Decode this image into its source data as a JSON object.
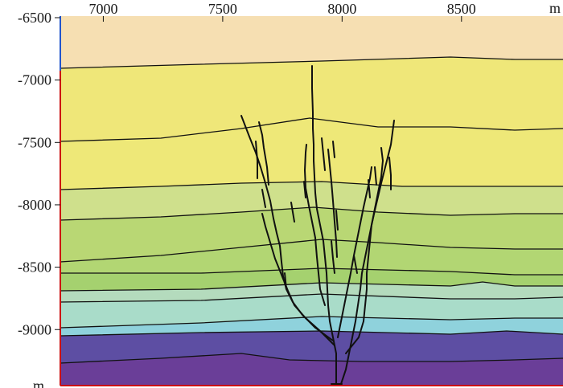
{
  "section": {
    "x_axis": {
      "unit": "m",
      "ticks": [
        {
          "value": 7000,
          "label": "7000"
        },
        {
          "value": 7500,
          "label": "7500"
        },
        {
          "value": 8000,
          "label": "8000"
        },
        {
          "value": 8500,
          "label": "8500"
        }
      ]
    },
    "y_axis": {
      "unit": "m",
      "ticks": [
        {
          "value": -6500,
          "label": "-6500"
        },
        {
          "value": -7000,
          "label": "-7000"
        },
        {
          "value": -7500,
          "label": "-7500"
        },
        {
          "value": -8000,
          "label": "-8000"
        },
        {
          "value": -8500,
          "label": "-8500"
        },
        {
          "value": -9000,
          "label": "-9000"
        }
      ]
    },
    "layer_colors": [
      "#f6dfb2",
      "#efe779",
      "#eee878",
      "#cfe08c",
      "#b9d774",
      "#b2d673",
      "#a5d16f",
      "#9fcf6d",
      "#b4dbbd",
      "#a9dcc9",
      "#8fd2dc",
      "#5d4ea3",
      "#6a3e98"
    ],
    "axis_colors": {
      "left_line": "#cc1111",
      "left_top_segment": "#2255cc",
      "bottom_line": "#cc1111"
    }
  }
}
